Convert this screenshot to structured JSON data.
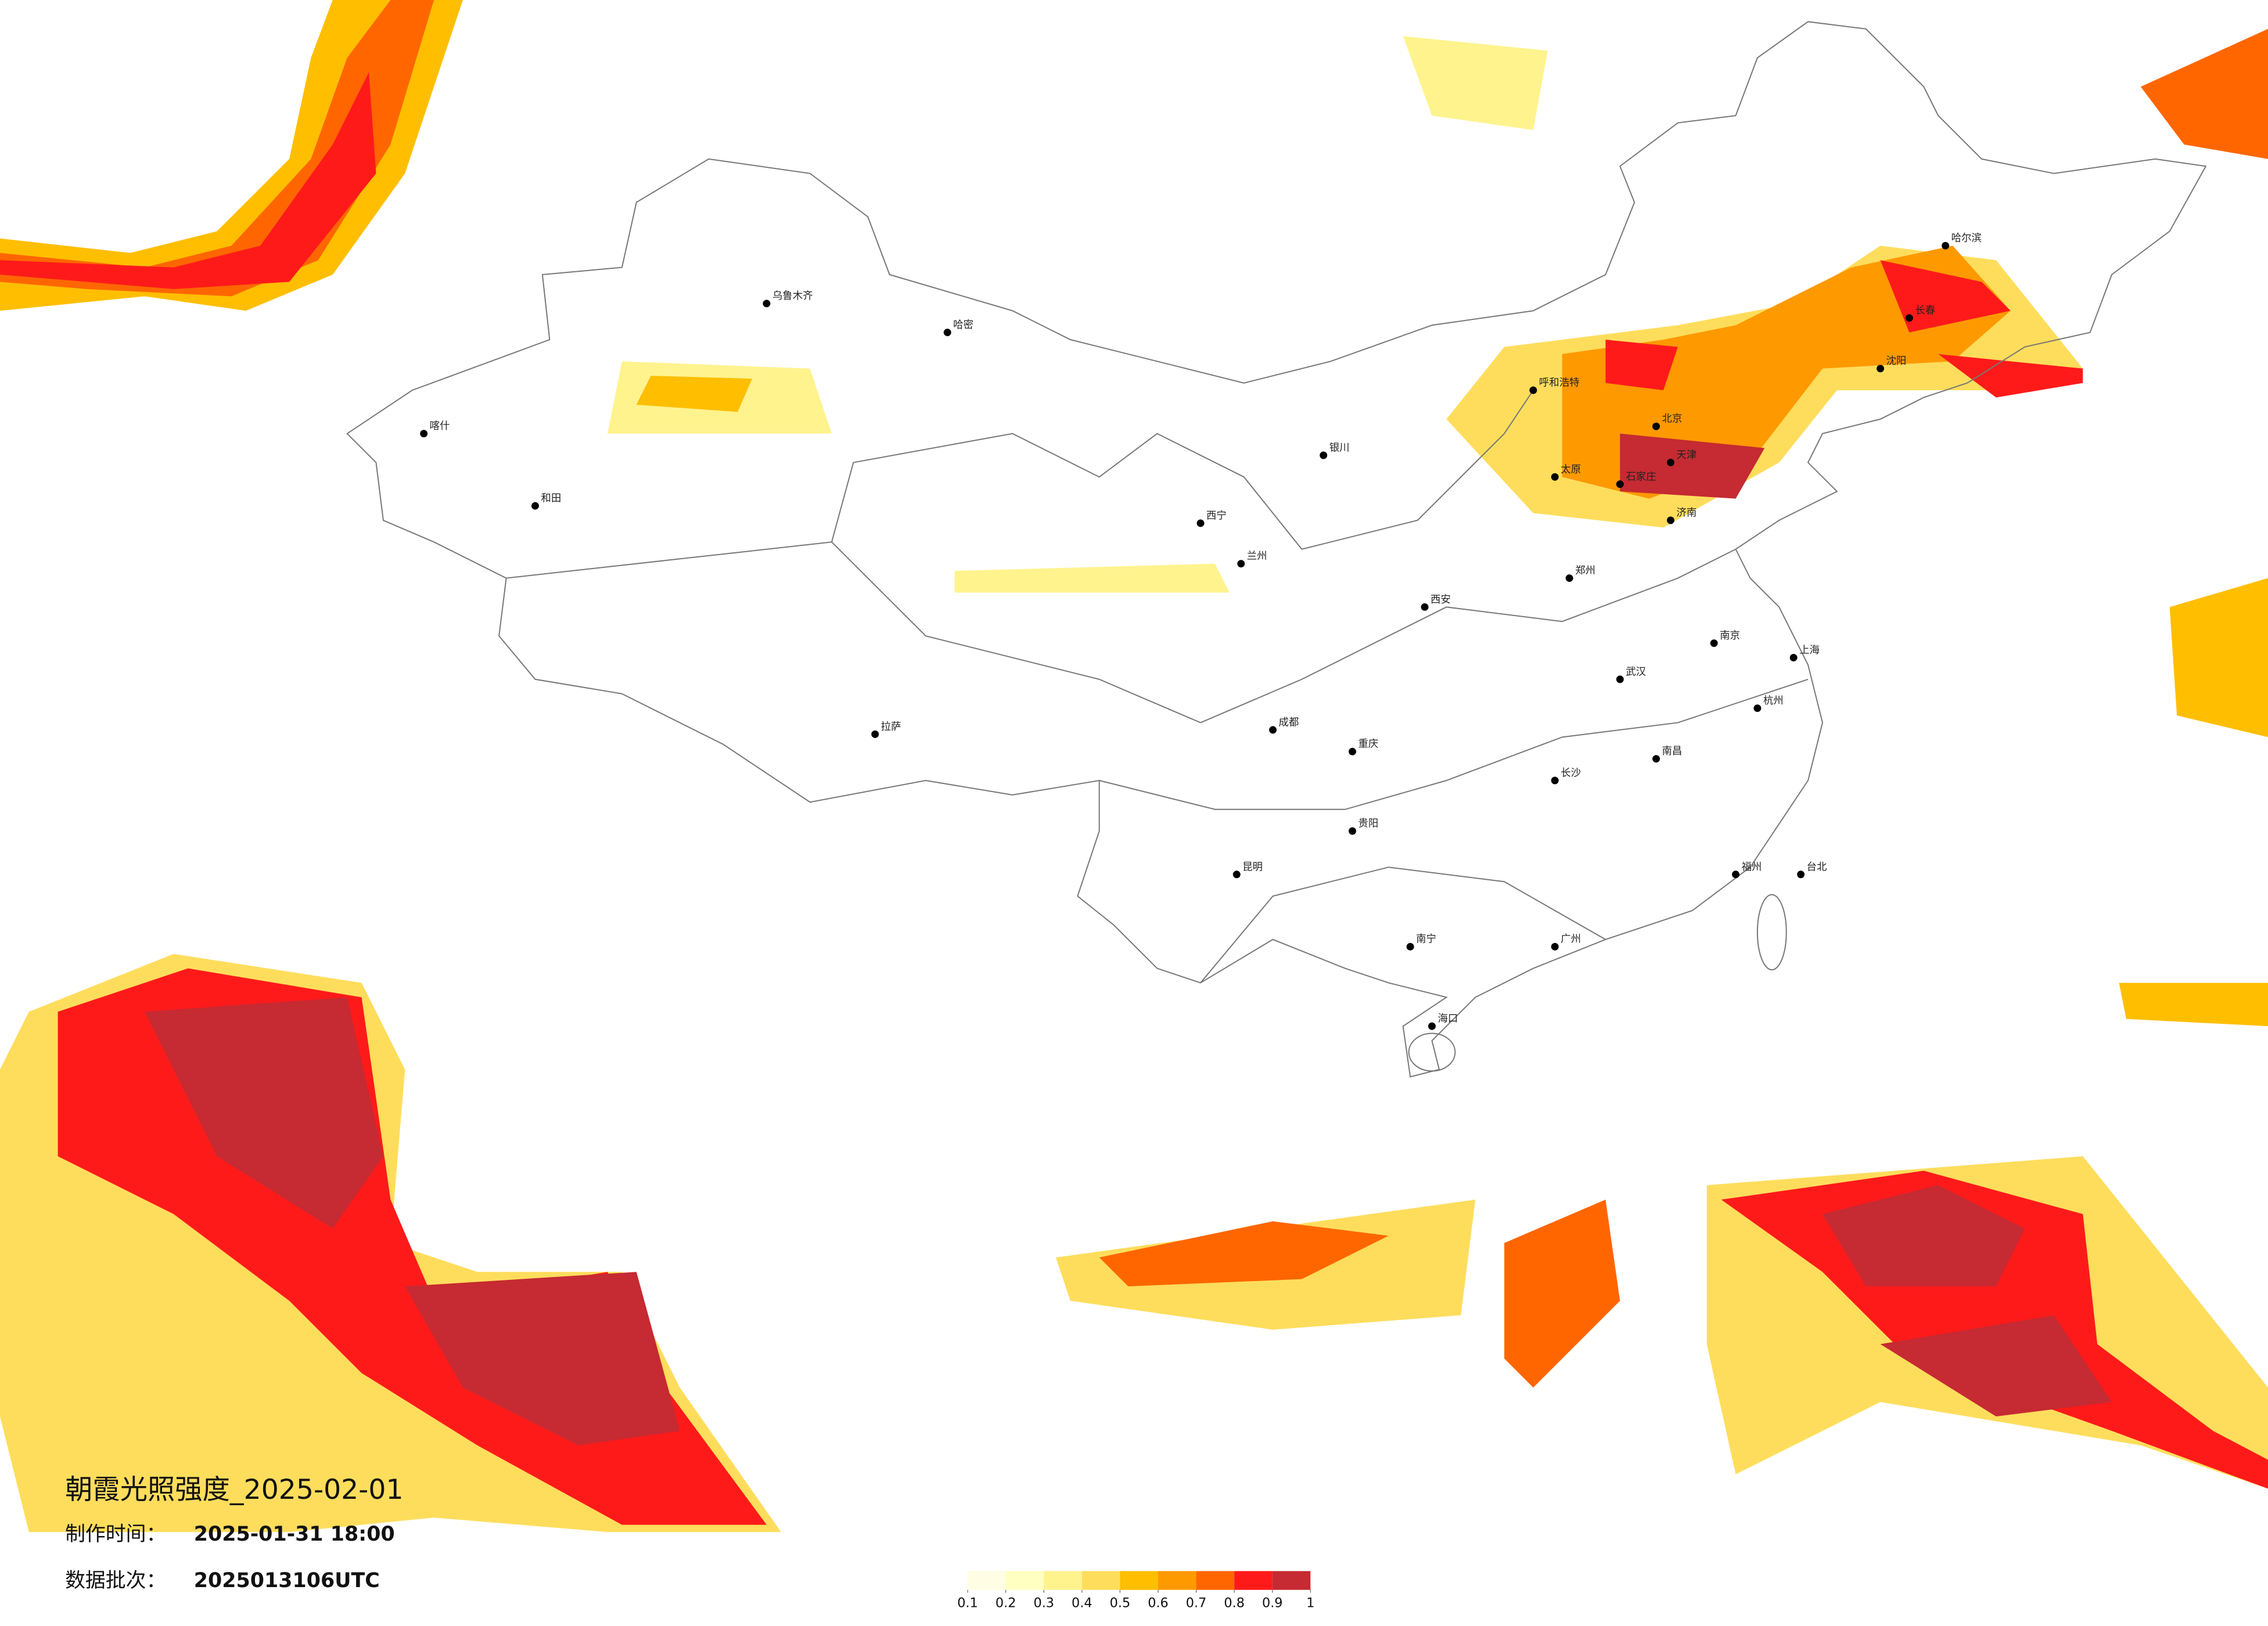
{
  "title": "朝霞光照强度_2025-02-01",
  "made_time": {
    "label": "制作时间：",
    "value": "2025-01-31 18:00"
  },
  "batch": {
    "label": "数据批次：",
    "value": "2025013106UTC"
  },
  "colorbar": {
    "colors": [
      "#fffde3",
      "#ffffc2",
      "#fff38e",
      "#ffdd5c",
      "#ffbe00",
      "#ff9900",
      "#ff6600",
      "#ff1a1a",
      "#c62a32"
    ],
    "ticks": [
      0.1,
      0.2,
      0.3,
      0.4,
      0.5,
      0.6,
      0.7,
      0.8,
      0.9,
      1
    ]
  },
  "cities": [
    "乌鲁木齐",
    "哈密",
    "喀什",
    "和田",
    "拉萨",
    "西宁",
    "兰州",
    "银川",
    "呼和浩特",
    "北京",
    "天津",
    "哈尔滨",
    "长春",
    "沈阳",
    "济南",
    "郑州",
    "西安",
    "成都",
    "重庆",
    "武汉",
    "南京",
    "上海",
    "杭州",
    "长沙",
    "南昌",
    "福州",
    "广州",
    "南宁",
    "昆明",
    "贵阳",
    "海口",
    "台北",
    "太原",
    "石家庄"
  ]
}
